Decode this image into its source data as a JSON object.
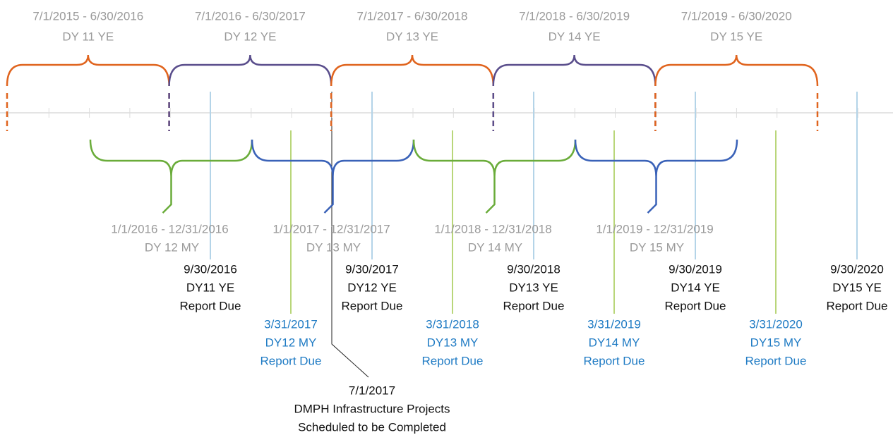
{
  "ye_periods": [
    {
      "dates": "7/1/2015 - 6/30/2016",
      "label": "DY 11 YE",
      "color": "#e0641e"
    },
    {
      "dates": "7/1/2016 - 6/30/2017",
      "label": "DY 12 YE",
      "color": "#5a4e8c"
    },
    {
      "dates": "7/1/2017 - 6/30/2018",
      "label": "DY 13 YE",
      "color": "#e0641e"
    },
    {
      "dates": "7/1/2018 - 6/30/2019",
      "label": "DY 14 YE",
      "color": "#5a4e8c"
    },
    {
      "dates": "7/1/2019 - 6/30/2020",
      "label": "DY 15 YE",
      "color": "#e0641e"
    }
  ],
  "my_periods": [
    {
      "dates": "1/1/2016 - 12/31/2016",
      "label": "DY 12 MY",
      "color": "#6aac3a"
    },
    {
      "dates": "1/1/2017 - 12/31/2017",
      "label": "DY 13 MY",
      "color": "#3a62b8"
    },
    {
      "dates": "1/1/2018 - 12/31/2018",
      "label": "DY 14 MY",
      "color": "#6aac3a"
    },
    {
      "dates": "1/1/2019 - 12/31/2019",
      "label": "DY 15 MY",
      "color": "#3a62b8"
    }
  ],
  "ye_reports": [
    [
      "9/30/2016",
      "DY11 YE",
      "Report Due"
    ],
    [
      "9/30/2017",
      "DY12 YE",
      "Report Due"
    ],
    [
      "9/30/2018",
      "DY13 YE",
      "Report Due"
    ],
    [
      "9/30/2019",
      "DY14 YE",
      "Report Due"
    ],
    [
      "9/30/2020",
      "DY15 YE",
      "Report Due"
    ]
  ],
  "my_reports": [
    [
      "3/31/2017",
      "DY12 MY",
      "Report Due"
    ],
    [
      "3/31/2018",
      "DY13 MY",
      "Report Due"
    ],
    [
      "3/31/2019",
      "DY14 MY",
      "Report Due"
    ],
    [
      "3/31/2020",
      "DY15 MY",
      "Report Due"
    ]
  ],
  "milestone": [
    "7/1/2017",
    "DMPH Infrastructure Projects",
    "Scheduled to be Completed"
  ]
}
